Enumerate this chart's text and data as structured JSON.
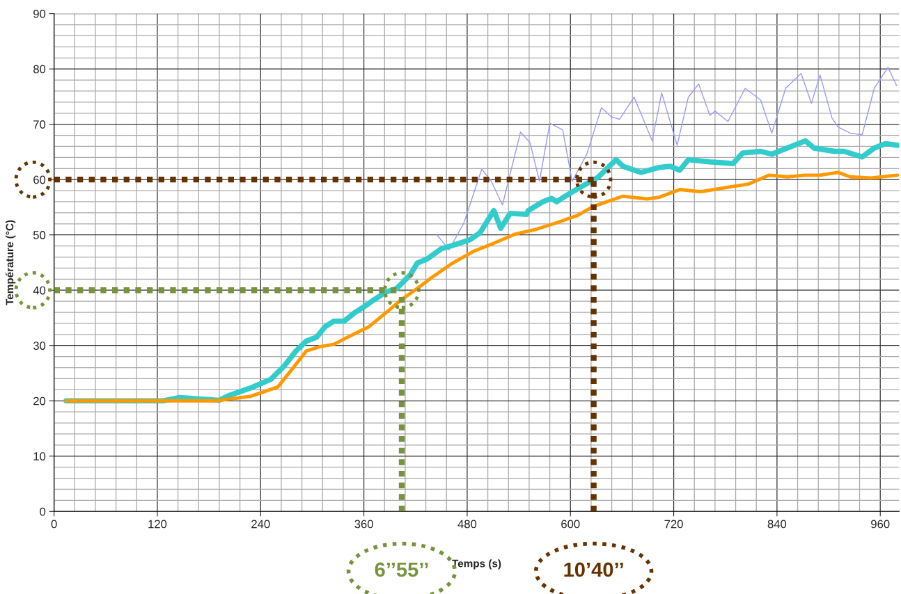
{
  "chart_data": {
    "type": "line",
    "xlabel": "Temps (s)",
    "ylabel": "Température (°C)",
    "xlim": [
      0,
      982
    ],
    "ylim": [
      0,
      90
    ],
    "xticks": [
      0,
      120,
      240,
      360,
      480,
      600,
      720,
      840,
      960
    ],
    "yticks": [
      0,
      10,
      20,
      30,
      40,
      50,
      60,
      70,
      80,
      90
    ],
    "grid": true,
    "legend": false,
    "marker": "none",
    "line_style": "solid",
    "series": [
      {
        "color": "#9999ff",
        "x": [
          445,
          459,
          476,
          497,
          508,
          521,
          542,
          553,
          564,
          576,
          591,
          602,
          619,
          636,
          647,
          657,
          674,
          695,
          706,
          724,
          737,
          749,
          762,
          768,
          783,
          803,
          821,
          834,
          850,
          868,
          880,
          890,
          904,
          911,
          925,
          939,
          953,
          969,
          979
        ],
        "values": [
          50.0,
          47.3,
          52.1,
          61.9,
          59.7,
          55.4,
          68.6,
          66.7,
          59.7,
          70.2,
          69.0,
          59.7,
          64.6,
          73.0,
          71.4,
          70.9,
          74.9,
          67.0,
          75.7,
          66.2,
          74.9,
          77.3,
          71.6,
          72.4,
          70.5,
          76.5,
          74.4,
          68.4,
          76.5,
          79.2,
          73.8,
          78.9,
          71.1,
          69.5,
          68.4,
          68.1,
          76.5,
          80.3,
          77.0
        ]
      },
      {
        "color": "#33cccc",
        "x": [
          14,
          50,
          127,
          146,
          171,
          192,
          204,
          228,
          252,
          268,
          281,
          293,
          305,
          315,
          325,
          337,
          349,
          361,
          373,
          386,
          398,
          414,
          422,
          434,
          450,
          463,
          471,
          483,
          495,
          511,
          519,
          530,
          549,
          551,
          568,
          578,
          584,
          594,
          608,
          632,
          653,
          661,
          682,
          703,
          716,
          727,
          737,
          762,
          789,
          800,
          821,
          834,
          873,
          883,
          907,
          918,
          939,
          953,
          966,
          980
        ],
        "values": [
          20.0,
          20.0,
          20.0,
          20.6,
          20.3,
          20.1,
          21.0,
          22.3,
          23.9,
          26.4,
          29.0,
          30.8,
          31.5,
          33.4,
          34.4,
          34.4,
          35.9,
          37.1,
          38.4,
          39.7,
          40.3,
          42.8,
          44.9,
          45.7,
          47.5,
          48.1,
          48.5,
          49.1,
          50.4,
          54.4,
          51.2,
          53.9,
          53.7,
          54.4,
          56.0,
          56.6,
          56.0,
          57.0,
          58.3,
          60.4,
          63.6,
          62.4,
          61.3,
          62.2,
          62.4,
          61.7,
          63.6,
          63.2,
          62.9,
          64.8,
          65.1,
          64.6,
          67.0,
          65.7,
          65.1,
          65.1,
          64.1,
          65.7,
          66.5,
          66.2
        ]
      },
      {
        "color": "#ff9900",
        "x": [
          14,
          188,
          228,
          260,
          277,
          293,
          309,
          325,
          341,
          366,
          390,
          402,
          422,
          438,
          463,
          487,
          511,
          535,
          560,
          584,
          608,
          626,
          661,
          689,
          703,
          727,
          751,
          786,
          807,
          831,
          852,
          873,
          890,
          911,
          925,
          949,
          980
        ],
        "values": [
          20.0,
          20.0,
          20.8,
          22.5,
          25.8,
          29.0,
          29.8,
          30.2,
          31.5,
          33.4,
          36.5,
          38.1,
          40.3,
          42.2,
          44.9,
          47.0,
          48.5,
          50.1,
          51.0,
          52.2,
          53.5,
          55.1,
          57.0,
          56.5,
          56.8,
          58.2,
          57.8,
          58.7,
          59.2,
          60.8,
          60.5,
          60.8,
          60.8,
          61.3,
          60.5,
          60.3,
          60.8
        ]
      }
    ],
    "ref_lines": [
      {
        "axis": "y",
        "value": 60,
        "color": "#663300",
        "line_style": "dotted"
      },
      {
        "axis": "y",
        "value": 40,
        "color": "#77933c",
        "line_style": "dotted"
      },
      {
        "axis": "x",
        "value": 404,
        "label": "6’’55’’",
        "color": "#77933c",
        "line_style": "dotted"
      },
      {
        "axis": "x",
        "value": 627,
        "label": "10’40’’",
        "color": "#663300",
        "line_style": "dotted"
      }
    ]
  }
}
